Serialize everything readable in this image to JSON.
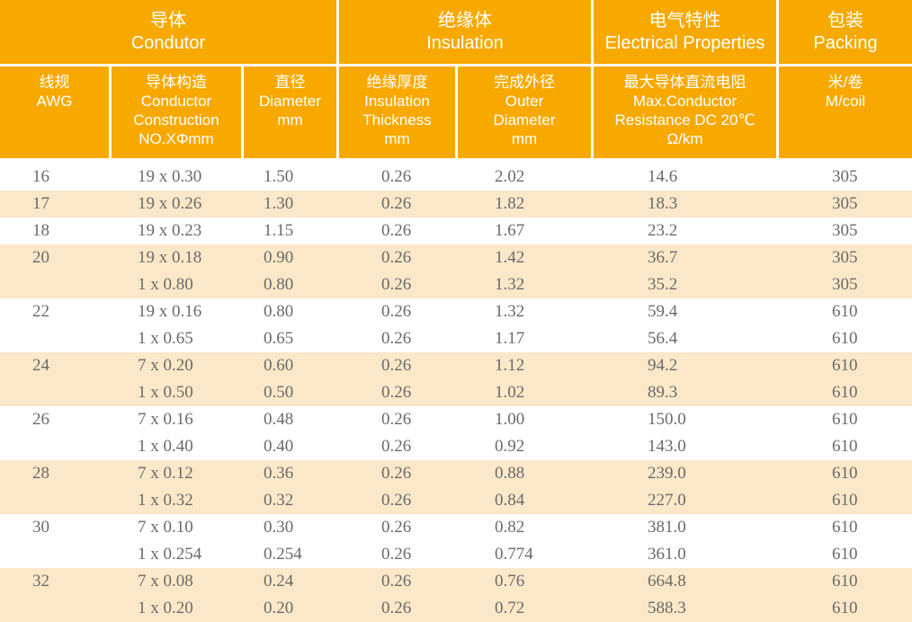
{
  "colors": {
    "header_orange": "#F7A900",
    "header_text": "#FFFFFF",
    "row_tint": "#FBE8C8",
    "row_plain": "#FFFFFF",
    "data_text": "#6A6A6A"
  },
  "table": {
    "groups": [
      {
        "id": "conductor",
        "zh": "导体",
        "en": "Condutor"
      },
      {
        "id": "insulation",
        "zh": "绝缘体",
        "en": "Insulation"
      },
      {
        "id": "electrical",
        "zh": "电气特性",
        "en": "Electrical Properties"
      },
      {
        "id": "packing",
        "zh": "包装",
        "en": "Packing"
      }
    ],
    "columns": [
      {
        "id": "awg",
        "lines": [
          "线规",
          "AWG"
        ]
      },
      {
        "id": "construction",
        "lines": [
          "导体构造",
          "Conductor",
          "Construction",
          "NO.XΦmm"
        ]
      },
      {
        "id": "diameter",
        "lines": [
          "直径",
          "Diameter",
          "mm"
        ]
      },
      {
        "id": "thickness",
        "lines": [
          "绝缘厚度",
          "Insulation",
          "Thickness",
          "mm"
        ]
      },
      {
        "id": "outer",
        "lines": [
          "完成外径",
          "Outer",
          "Diameter",
          "mm"
        ]
      },
      {
        "id": "resistance",
        "lines": [
          "最大导体直流电阻",
          "Max.Conductor",
          "Resistance DC 20℃",
          "Ω/km"
        ]
      },
      {
        "id": "coil",
        "lines": [
          "米/卷",
          "M/coil"
        ]
      }
    ],
    "rows": [
      {
        "awg": "16",
        "construction": "19 x 0.30",
        "diameter": "1.50",
        "thickness": "0.26",
        "outer": "2.02",
        "resistance": "14.6",
        "coil": "305",
        "shade": "plain"
      },
      {
        "awg": "17",
        "construction": "19 x 0.26",
        "diameter": "1.30",
        "thickness": "0.26",
        "outer": "1.82",
        "resistance": "18.3",
        "coil": "305",
        "shade": "tint"
      },
      {
        "awg": "18",
        "construction": "19 x 0.23",
        "diameter": "1.15",
        "thickness": "0.26",
        "outer": "1.67",
        "resistance": "23.2",
        "coil": "305",
        "shade": "plain"
      },
      {
        "awg": "20",
        "construction": "19 x 0.18",
        "diameter": "0.90",
        "thickness": "0.26",
        "outer": "1.42",
        "resistance": "36.7",
        "coil": "305",
        "shade": "tint"
      },
      {
        "awg": "",
        "construction": "1 x 0.80",
        "diameter": "0.80",
        "thickness": "0.26",
        "outer": "1.32",
        "resistance": "35.2",
        "coil": "305",
        "shade": "tint"
      },
      {
        "awg": "22",
        "construction": "19 x 0.16",
        "diameter": "0.80",
        "thickness": "0.26",
        "outer": "1.32",
        "resistance": "59.4",
        "coil": "610",
        "shade": "plain"
      },
      {
        "awg": "",
        "construction": "1 x 0.65",
        "diameter": "0.65",
        "thickness": "0.26",
        "outer": "1.17",
        "resistance": "56.4",
        "coil": "610",
        "shade": "plain"
      },
      {
        "awg": "24",
        "construction": "7 x 0.20",
        "diameter": "0.60",
        "thickness": "0.26",
        "outer": "1.12",
        "resistance": "94.2",
        "coil": "610",
        "shade": "tint"
      },
      {
        "awg": "",
        "construction": "1 x 0.50",
        "diameter": "0.50",
        "thickness": "0.26",
        "outer": "1.02",
        "resistance": "89.3",
        "coil": "610",
        "shade": "tint"
      },
      {
        "awg": "26",
        "construction": "7 x 0.16",
        "diameter": "0.48",
        "thickness": "0.26",
        "outer": "1.00",
        "resistance": "150.0",
        "coil": "610",
        "shade": "plain"
      },
      {
        "awg": "",
        "construction": "1 x 0.40",
        "diameter": "0.40",
        "thickness": "0.26",
        "outer": "0.92",
        "resistance": "143.0",
        "coil": "610",
        "shade": "plain"
      },
      {
        "awg": "28",
        "construction": "7 x 0.12",
        "diameter": "0.36",
        "thickness": "0.26",
        "outer": "0.88",
        "resistance": "239.0",
        "coil": "610",
        "shade": "tint"
      },
      {
        "awg": "",
        "construction": "1 x 0.32",
        "diameter": "0.32",
        "thickness": "0.26",
        "outer": "0.84",
        "resistance": "227.0",
        "coil": "610",
        "shade": "tint"
      },
      {
        "awg": "30",
        "construction": "7 x 0.10",
        "diameter": "0.30",
        "thickness": "0.26",
        "outer": "0.82",
        "resistance": "381.0",
        "coil": "610",
        "shade": "plain"
      },
      {
        "awg": "",
        "construction": "1 x 0.254",
        "diameter": "0.254",
        "thickness": "0.26",
        "outer": "0.774",
        "resistance": "361.0",
        "coil": "610",
        "shade": "plain"
      },
      {
        "awg": "32",
        "construction": "7 x 0.08",
        "diameter": "0.24",
        "thickness": "0.26",
        "outer": "0.76",
        "resistance": "664.8",
        "coil": "610",
        "shade": "tint"
      },
      {
        "awg": "",
        "construction": "1 x 0.20",
        "diameter": "0.20",
        "thickness": "0.26",
        "outer": "0.72",
        "resistance": "588.3",
        "coil": "610",
        "shade": "tint"
      }
    ]
  }
}
